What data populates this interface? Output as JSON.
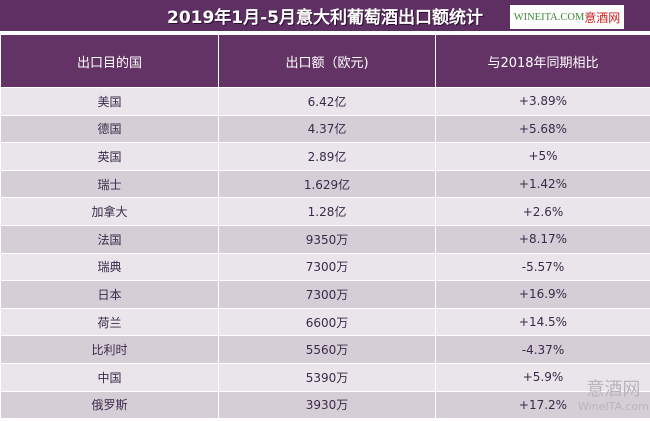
{
  "title": "2019年1月-5月意大利葡萄酒出口额统计",
  "logo": {
    "text_latin": "WINEITA.COM",
    "text_cn": "意酒网"
  },
  "columns": [
    "出口目的国",
    "出口额（欧元)",
    "与2018年同期相比"
  ],
  "rows": [
    [
      "美国",
      "6.42亿",
      "+3.89%"
    ],
    [
      "德国",
      "4.37亿",
      "+5.68%"
    ],
    [
      "英国",
      "2.89亿",
      "+5%"
    ],
    [
      "瑞士",
      "1.629亿",
      "+1.42%"
    ],
    [
      "加拿大",
      "1.28亿",
      "+2.6%"
    ],
    [
      "法国",
      "9350万",
      "+8.17%"
    ],
    [
      "瑞典",
      "7300万",
      "-5.57%"
    ],
    [
      "日本",
      "7300万",
      "+16.9%"
    ],
    [
      "荷兰",
      "6600万",
      "+14.5%"
    ],
    [
      "比利时",
      "5560万",
      "-4.37%"
    ],
    [
      "中国",
      "5390万",
      "+5.9%"
    ],
    [
      "俄罗斯",
      "3930万",
      "+17.2%"
    ]
  ],
  "watermark": {
    "cn": "意酒网",
    "latin": "WineITA.com"
  },
  "colors": {
    "header": "#643366",
    "row_light": "#e9e5ea",
    "row_dark": "#d6ced7"
  }
}
